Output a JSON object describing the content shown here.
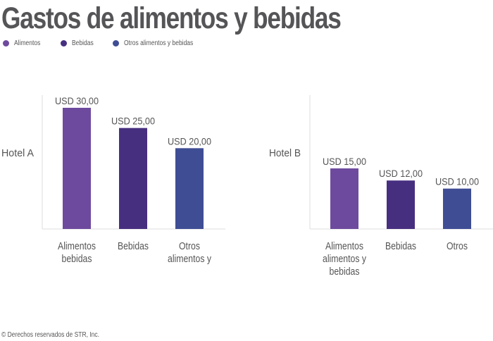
{
  "title": "Gastos de alimentos y bebidas",
  "legend": [
    {
      "label": "Alimentos",
      "color": "#6e4a9e"
    },
    {
      "label": "Bebidas",
      "color": "#472f80"
    },
    {
      "label": "Otros alimentos y bebidas",
      "color": "#3f4d94"
    }
  ],
  "footer": "© Derechos reservados de STR, Inc.",
  "chart_data": [
    {
      "type": "bar",
      "title": "Hotel A",
      "categories": [
        "Alimentos bebidas",
        "Bebidas",
        "Otros alimentos y"
      ],
      "category_lines": [
        [
          "Alimentos",
          "bebidas"
        ],
        [
          "Bebidas"
        ],
        [
          "Otros",
          "alimentos y"
        ]
      ],
      "values": [
        30,
        25,
        20
      ],
      "data_labels": [
        "USD 30,00",
        "USD 25,00",
        "USD 20,00"
      ],
      "colors": [
        "#6e4a9e",
        "#472f80",
        "#3f4d94"
      ],
      "ylim": [
        0,
        30
      ],
      "grid": false
    },
    {
      "type": "bar",
      "title": "Hotel B",
      "categories": [
        "Alimentos alimentos y bebidas",
        "Bebidas",
        "Otros"
      ],
      "category_lines": [
        [
          "Alimentos",
          "alimentos y",
          "bebidas"
        ],
        [
          "Bebidas"
        ],
        [
          "Otros"
        ]
      ],
      "values": [
        15,
        12,
        10
      ],
      "data_labels": [
        "USD 15,00",
        "USD 12,00",
        "USD 10,00"
      ],
      "colors": [
        "#6e4a9e",
        "#472f80",
        "#3f4d94"
      ],
      "ylim": [
        0,
        30
      ],
      "grid": false
    }
  ]
}
